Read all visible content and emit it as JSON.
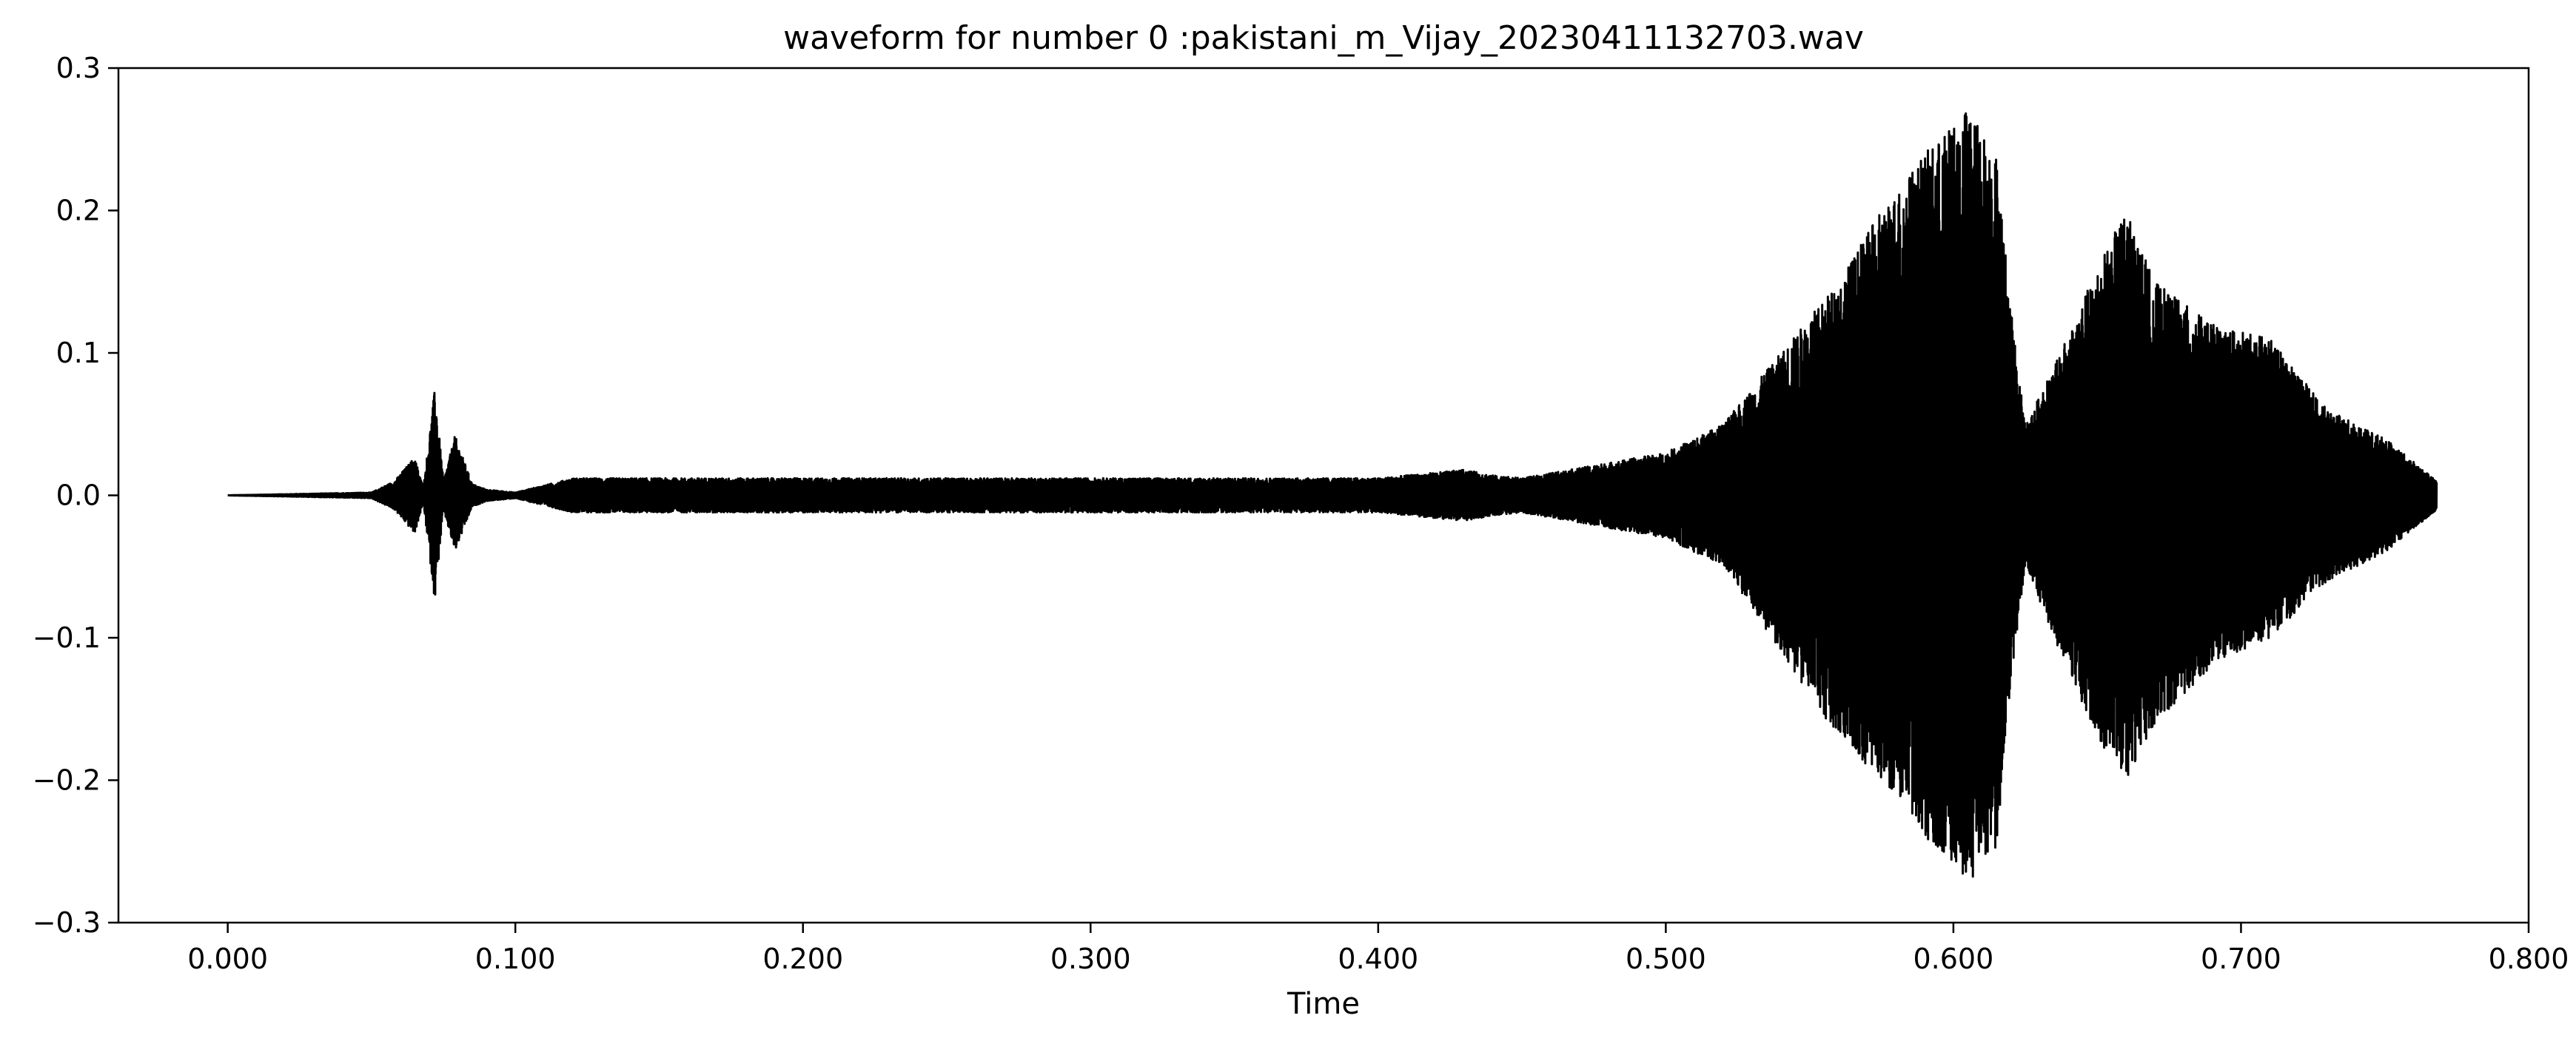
{
  "chart_data": {
    "type": "line",
    "title": "waveform for number 0 :pakistani_m_Vijay_20230411132703.wav",
    "xlabel": "Time",
    "ylabel": "",
    "xlim": [
      -0.038,
      0.8
    ],
    "ylim": [
      -0.3,
      0.3
    ],
    "x_ticks": [
      0.0,
      0.1,
      0.2,
      0.3,
      0.4,
      0.5,
      0.6,
      0.7,
      0.8
    ],
    "x_tick_labels": [
      "0.000",
      "0.100",
      "0.200",
      "0.300",
      "0.400",
      "0.500",
      "0.600",
      "0.700",
      "0.800"
    ],
    "y_ticks": [
      -0.3,
      -0.2,
      -0.1,
      0.0,
      0.1,
      0.2,
      0.3
    ],
    "y_tick_labels": [
      "−0.3",
      "−0.2",
      "−0.1",
      "0.0",
      "0.1",
      "0.2",
      "0.3"
    ],
    "grid": false,
    "line_color": "#000000",
    "series": [
      {
        "duration": 0.768,
        "envelope": {
          "time": [
            0.0,
            0.05,
            0.058,
            0.065,
            0.068,
            0.072,
            0.075,
            0.079,
            0.085,
            0.09,
            0.1,
            0.12,
            0.2,
            0.3,
            0.4,
            0.43,
            0.44,
            0.45,
            0.5,
            0.52,
            0.54,
            0.56,
            0.575,
            0.59,
            0.6,
            0.605,
            0.615,
            0.62,
            0.625,
            0.635,
            0.65,
            0.66,
            0.67,
            0.69,
            0.71,
            0.73,
            0.75,
            0.768
          ],
          "max": [
            0.0,
            0.002,
            0.01,
            0.027,
            0.005,
            0.075,
            0.01,
            0.042,
            0.008,
            0.004,
            0.002,
            0.012,
            0.012,
            0.012,
            0.012,
            0.018,
            0.014,
            0.012,
            0.03,
            0.05,
            0.1,
            0.15,
            0.2,
            0.24,
            0.26,
            0.273,
            0.24,
            0.13,
            0.05,
            0.09,
            0.16,
            0.2,
            0.15,
            0.12,
            0.11,
            0.06,
            0.04,
            0.01
          ],
          "min": [
            0.0,
            -0.002,
            -0.01,
            -0.027,
            -0.005,
            -0.074,
            -0.01,
            -0.04,
            -0.008,
            -0.004,
            -0.002,
            -0.012,
            -0.012,
            -0.012,
            -0.012,
            -0.018,
            -0.014,
            -0.012,
            -0.03,
            -0.05,
            -0.11,
            -0.17,
            -0.2,
            -0.24,
            -0.26,
            -0.273,
            -0.25,
            -0.13,
            -0.05,
            -0.1,
            -0.17,
            -0.2,
            -0.16,
            -0.12,
            -0.1,
            -0.06,
            -0.04,
            -0.01
          ]
        }
      }
    ]
  }
}
